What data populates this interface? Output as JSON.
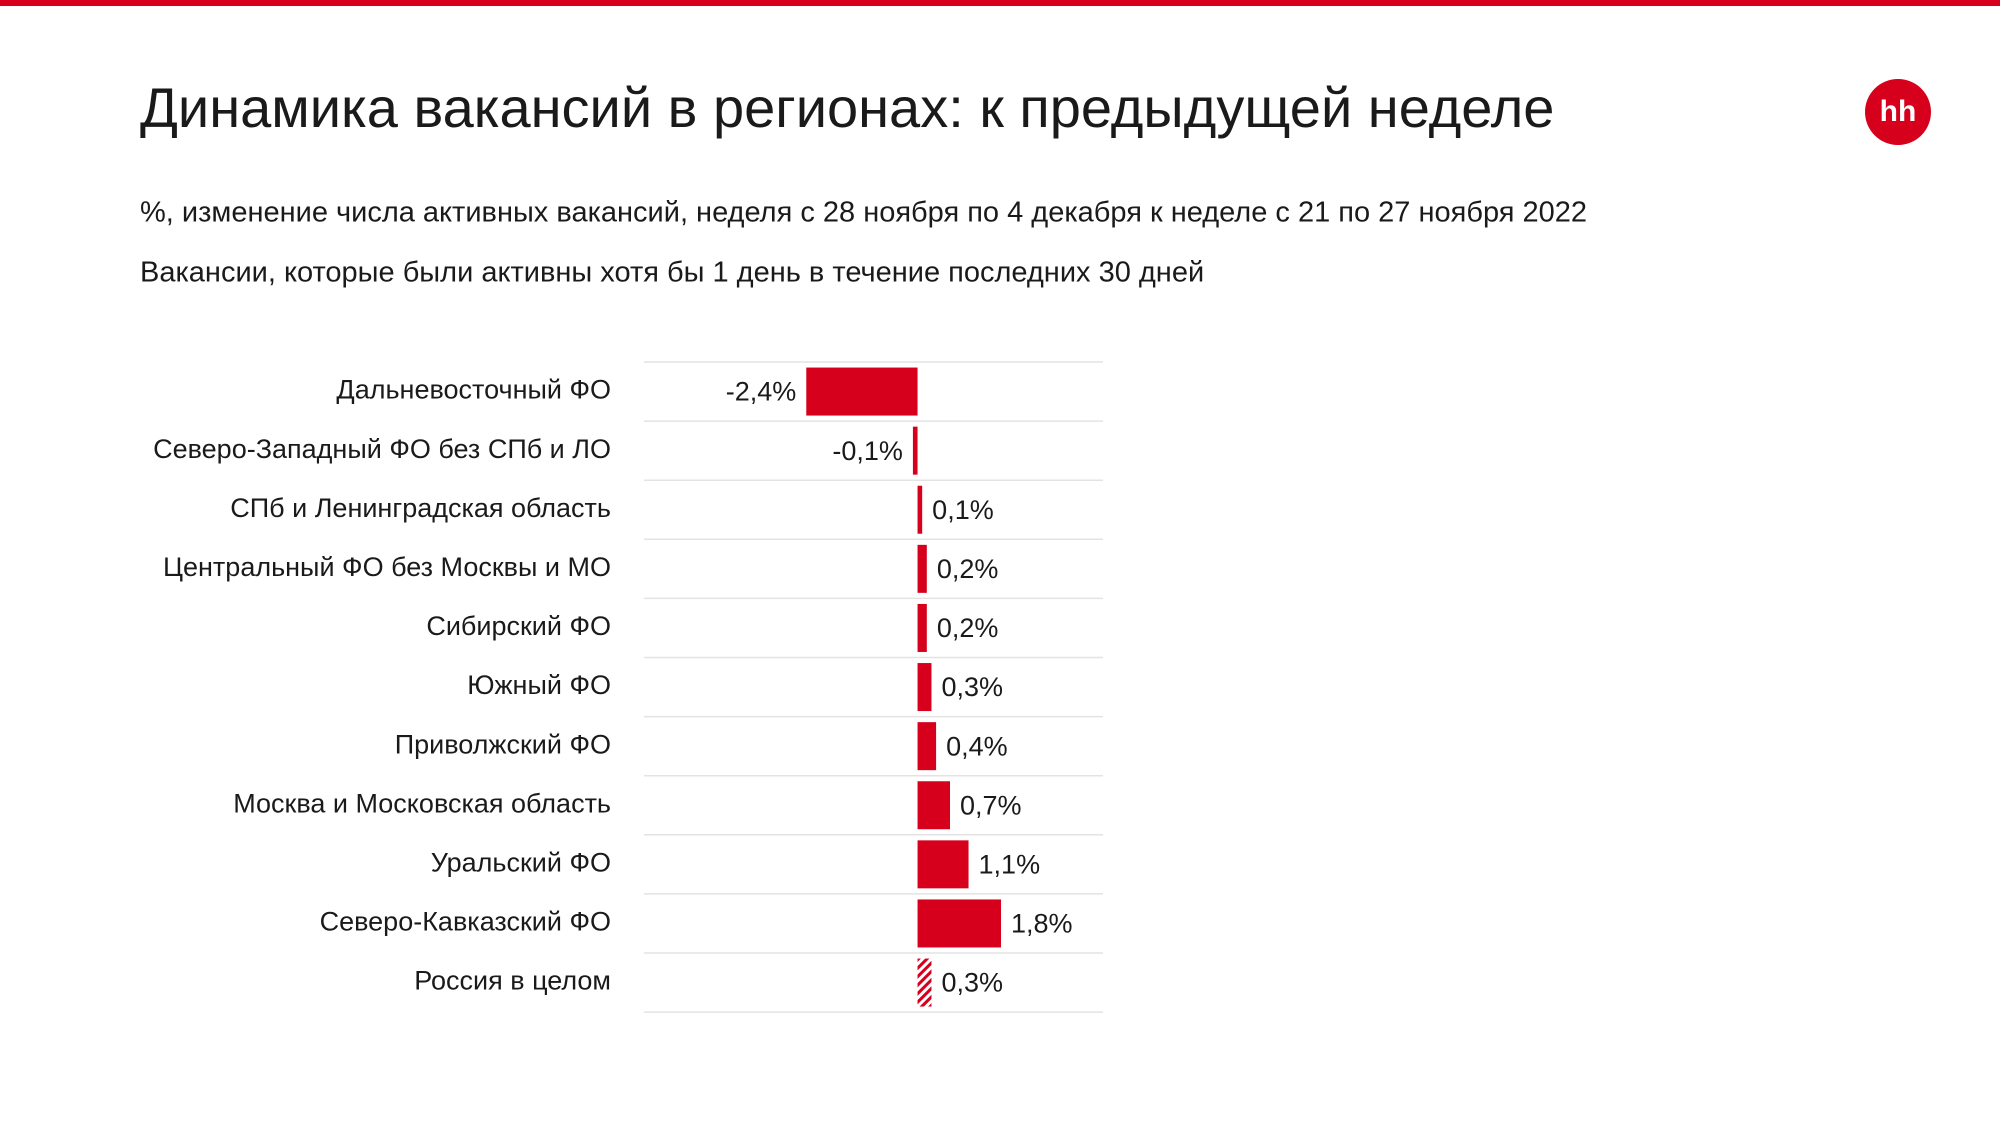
{
  "logo": "hh",
  "chart_data": {
    "type": "barh",
    "title": "Динамика вакансий в регионах: к предыдущей неделе",
    "subtitle": "%, изменение числа активных вакансий, неделя с 28 ноября по 4 декабря к неделе с 21 по 27 ноября 2022",
    "note": "Вакансии, которые были активны хотя бы 1 день в течение последних 30 дней",
    "categories": [
      "Дальневосточный ФО",
      "Северо-Западный ФО без СПб и ЛО",
      "СПб и Ленинградская область",
      "Центральный ФО без Москвы и МО",
      "Сибирский ФО",
      "Южный ФО",
      "Приволжский ФО",
      "Москва и Московская область",
      "Уральский ФО",
      "Северо-Кавказский ФО",
      "Россия в целом"
    ],
    "values": [
      -2.4,
      -0.1,
      0.1,
      0.2,
      0.2,
      0.3,
      0.4,
      0.7,
      1.1,
      1.8,
      0.3
    ],
    "value_labels": [
      "-2,4%",
      "-0,1%",
      "0,1%",
      "0,2%",
      "0,2%",
      "0,3%",
      "0,4%",
      "0,7%",
      "1,1%",
      "1,8%",
      "0,3%"
    ],
    "hatched": [
      false,
      false,
      false,
      false,
      false,
      false,
      false,
      false,
      false,
      false,
      true
    ],
    "color": "#d6001c",
    "xlim": [
      -5.9,
      4
    ]
  }
}
